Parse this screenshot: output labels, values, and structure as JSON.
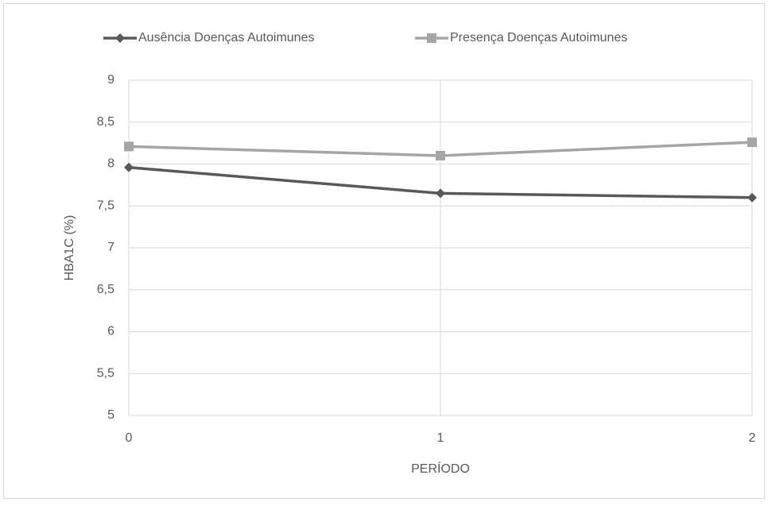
{
  "chart_data": {
    "type": "line",
    "x_label": "PERÍODO",
    "y_label": "HBA1C (%)",
    "x": [
      0,
      1,
      2
    ],
    "xlim": [
      0,
      2
    ],
    "xticks": [
      0,
      1,
      2
    ],
    "ylim": [
      5,
      9
    ],
    "yticks": [
      5,
      {
        "value": 5.5,
        "label": "5,5"
      },
      6,
      {
        "value": 6.5,
        "label": "6,5"
      },
      7,
      {
        "value": 7.5,
        "label": "7,5"
      },
      8,
      {
        "value": 8.5,
        "label": "8,5"
      },
      9
    ],
    "grid": true,
    "legend": "top",
    "series": [
      {
        "name": "Ausência Doenças Autoimunes",
        "color": "#595959",
        "marker": "diamond",
        "values": [
          7.96,
          7.65,
          7.6
        ]
      },
      {
        "name": "Presença Doenças Autoimunes",
        "color": "#a5a5a5",
        "marker": "square",
        "values": [
          8.21,
          8.1,
          8.26
        ]
      }
    ]
  }
}
